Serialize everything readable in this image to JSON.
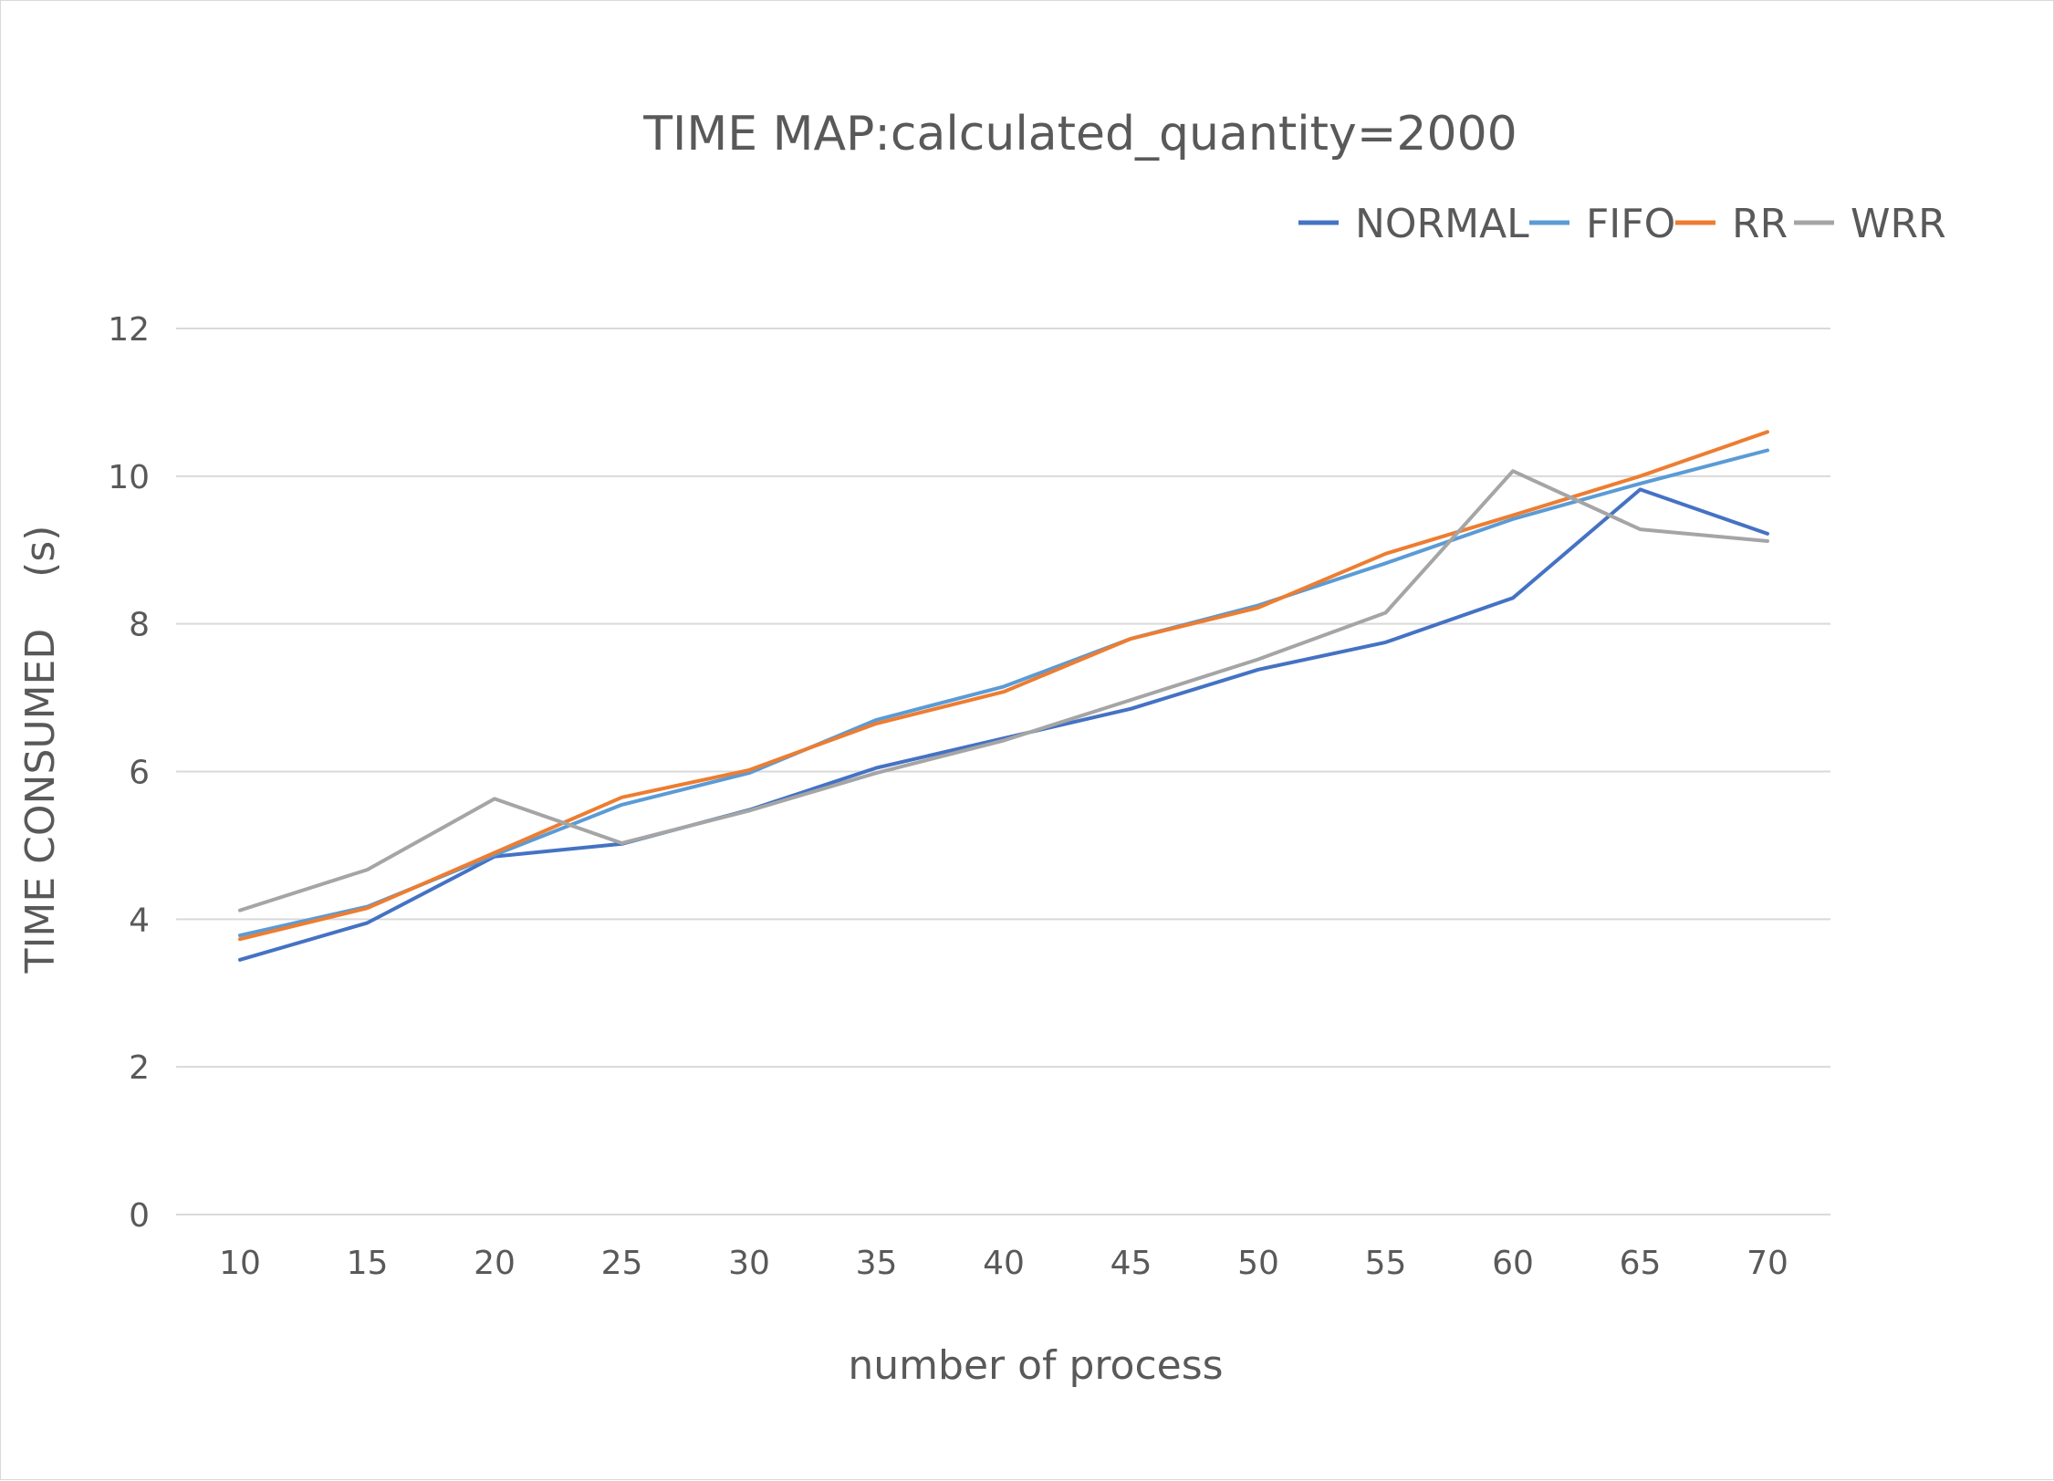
{
  "chart_data": {
    "type": "line",
    "title": "TIME MAP:calculated_quantity=2000",
    "xlabel": "number of process",
    "ylabel": "TIME CONSUMED    (s)",
    "x": [
      "10",
      "15",
      "20",
      "25",
      "30",
      "35",
      "40",
      "45",
      "50",
      "55",
      "60",
      "65",
      "70"
    ],
    "ylim": [
      0,
      12
    ],
    "yticks": [
      "0",
      "2",
      "4",
      "6",
      "8",
      "10",
      "12"
    ],
    "grid": true,
    "legend_position": "top-right",
    "series": [
      {
        "name": "NORMAL",
        "color": "#4472c4",
        "values": [
          3.45,
          3.95,
          4.85,
          5.02,
          5.48,
          6.05,
          6.45,
          6.85,
          7.38,
          7.75,
          8.35,
          9.82,
          9.22
        ]
      },
      {
        "name": "FIFO",
        "color": "#5b9bd5",
        "values": [
          3.78,
          4.17,
          4.87,
          5.55,
          5.98,
          6.7,
          7.15,
          7.8,
          8.25,
          8.82,
          9.42,
          9.9,
          10.35
        ]
      },
      {
        "name": "RR",
        "color": "#ed7d31",
        "values": [
          3.73,
          4.15,
          4.9,
          5.65,
          6.02,
          6.65,
          7.08,
          7.8,
          8.22,
          8.95,
          9.47,
          10.0,
          10.6
        ]
      },
      {
        "name": "WRR",
        "color": "#a5a5a5",
        "values": [
          4.12,
          4.67,
          5.63,
          5.03,
          5.47,
          5.98,
          6.42,
          6.97,
          7.52,
          8.15,
          10.07,
          9.28,
          9.12
        ]
      }
    ]
  }
}
